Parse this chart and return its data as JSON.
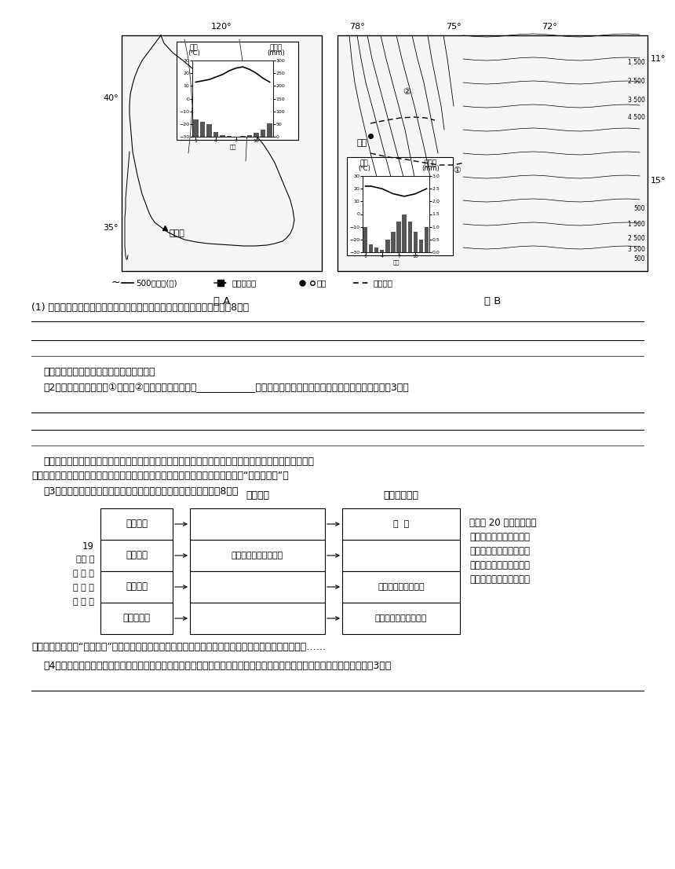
{
  "bg_color": "#ffffff",
  "fig_width": 8.6,
  "fig_height": 11.06,
  "dpi": 100,
  "map_a_label": "图 A",
  "map_b_label": "图 B",
  "q1_label": "(1) 比较利马与洛杉矶两地降水特征的差异并说明利马降水特征的成因。（8分）",
  "p2_intro": "跨流域调水是缓解水资源紧张的重要措施。",
  "q2_label": "（2）秘鲁调水工程线路①与线路②相比，其主要优点是____________。分析秘鲁调水工程建设过程中可能遇到的困难。（3分）",
  "p3_intro1": "秘鲁农林牧渔生产具有传统优势，但由于管理粗放，生产效率不高。粮食作物以玉米、小麦为主，经济作",
  "p3_intro2": "物以棉花、咋嘚、可可为主。另外，世界上有一半羊驼位于秘鲁，其羊驼毛被誉为“行走的黄金”。",
  "q3_label": "（3）根据因地制宜的原则，结合材料和所学知识完成下列表格。（8分）",
  "table_header_geo": "地理依据",
  "table_header_agri": "农业发展方向",
  "table_rows": [
    {
      "region": "沿岘海域",
      "geo_basis": "",
      "agri_dir": "渔  业"
    },
    {
      "region": "沿海平原",
      "geo_basis": "光热充足、有灸溉水源",
      "agri_dir": ""
    },
    {
      "region": "中部山区",
      "geo_basis": "",
      "agri_dir": "以羊驼为主的蓄牧业"
    },
    {
      "region": "东部雨林区",
      "geo_basis": "",
      "agri_dir": "咋嘚、可可等经济作物"
    }
  ],
  "side_text_number": "19",
  "side_text_prefix_lines": [
    "石油 的",
    "美 国 西",
    "美 国 石",
    "和 电 子"
  ],
  "side_text_lines": [
    "世纪末 20 世纪初，随着",
    "发现，洛杉矶迅速发展成",
    "部最大的城市。现已成为",
    "油化工、海洋、航天工业",
    "业的最大基地，是美国科"
  ],
  "side_text_long": "技中心之一，享有“科技之城”的称号，著名的硬谷就坐落这里，还有好莱坤以及很多剧院、画廘、博物馆……",
  "q4_label": "（4）作为一个传统工业城市，洛杉矶并没有衰落，从地理的角度说出美国在洛杉矶区域可持续发展的过程中做了哪些工作？（3分）"
}
